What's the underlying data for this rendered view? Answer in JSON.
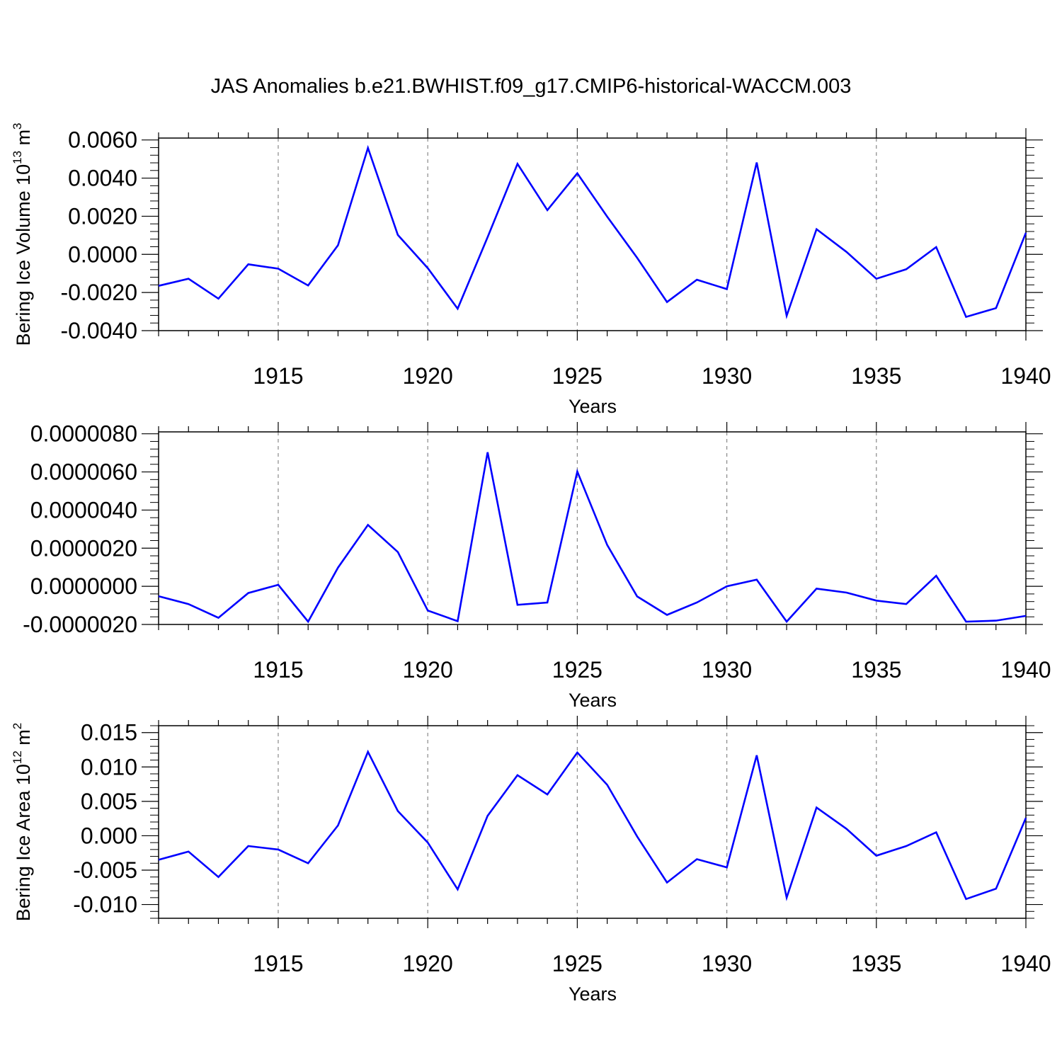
{
  "chart_data": [
    {
      "type": "line",
      "title": "JAS Anomalies b.e21.BWHIST.f09_g17.CMIP6-historical-WACCM.003",
      "ylabel": "Bering Ice Volume 10",
      "ylabel_sup": "13",
      "ylabel_unit": "m",
      "ylabel_unit_sup": "3",
      "xlabel": "Years",
      "xlim": [
        1911,
        1940
      ],
      "ylim": [
        -0.004,
        0.0061
      ],
      "x_ticks": [
        1915,
        1920,
        1925,
        1930,
        1935,
        1940
      ],
      "x_tick_labels": [
        "1915",
        "1920",
        "1925",
        "1930",
        "1935",
        "1940"
      ],
      "y_ticks": [
        -0.004,
        -0.002,
        0.0,
        0.002,
        0.004,
        0.006
      ],
      "y_tick_labels": [
        "-0.0040",
        "-0.0020",
        "0.0000",
        "0.0020",
        "0.0040",
        "0.0060"
      ],
      "line_color": "#0000ff",
      "x": [
        1911,
        1912,
        1913,
        1914,
        1915,
        1916,
        1917,
        1918,
        1919,
        1920,
        1921,
        1922,
        1923,
        1924,
        1925,
        1926,
        1927,
        1928,
        1929,
        1930,
        1931,
        1932,
        1933,
        1934,
        1935,
        1936,
        1937,
        1938,
        1939,
        1940
      ],
      "values": [
        -0.00165,
        -0.00128,
        -0.00232,
        -0.00052,
        -0.00075,
        -0.00163,
        0.00048,
        0.00558,
        0.00102,
        -0.00072,
        -0.00285,
        0.0009,
        0.00475,
        0.00232,
        0.00425,
        0.00198,
        -0.00018,
        -0.0025,
        -0.00133,
        -0.00182,
        0.00482,
        -0.00322,
        0.00132,
        0.00013,
        -0.00128,
        -0.00078,
        0.00038,
        -0.00328,
        -0.00282,
        0.00113
      ]
    },
    {
      "type": "line",
      "title": "",
      "ylabel": "",
      "xlabel": "Years",
      "xlim": [
        1911,
        1940
      ],
      "ylim": [
        -2e-06,
        8.1e-06
      ],
      "x_ticks": [
        1915,
        1920,
        1925,
        1930,
        1935,
        1940
      ],
      "x_tick_labels": [
        "1915",
        "1920",
        "1925",
        "1930",
        "1935",
        "1940"
      ],
      "y_ticks": [
        -2e-06,
        0.0,
        2e-06,
        4e-06,
        6e-06,
        8e-06
      ],
      "y_tick_labels": [
        "-0.0000020",
        "0.0000000",
        "0.0000020",
        "0.0000040",
        "0.0000060",
        "0.0000080"
      ],
      "line_color": "#0000ff",
      "x": [
        1911,
        1912,
        1913,
        1914,
        1915,
        1916,
        1917,
        1918,
        1919,
        1920,
        1921,
        1922,
        1923,
        1924,
        1925,
        1926,
        1927,
        1928,
        1929,
        1930,
        1931,
        1932,
        1933,
        1934,
        1935,
        1936,
        1937,
        1938,
        1939,
        1940
      ],
      "values": [
        -5.2e-07,
        -9.3e-07,
        -1.65e-06,
        -3.5e-07,
        8e-08,
        -1.85e-06,
        9.8e-07,
        3.22e-06,
        1.8e-06,
        -1.27e-06,
        -1.83e-06,
        7.03e-06,
        -9.7e-07,
        -8.5e-07,
        6.02e-06,
        2.17e-06,
        -5.3e-07,
        -1.5e-06,
        -8.5e-07,
        0.0,
        3.5e-07,
        -1.85e-06,
        -1.2e-07,
        -3.3e-07,
        -7.5e-07,
        -9.3e-07,
        5.5e-07,
        -1.85e-06,
        -1.8e-06,
        -1.55e-06
      ]
    },
    {
      "type": "line",
      "title": "",
      "ylabel": "Bering Ice Area 10",
      "ylabel_sup": "12",
      "ylabel_unit": "m",
      "ylabel_unit_sup": "2",
      "xlabel": "Years",
      "xlim": [
        1911,
        1940
      ],
      "ylim": [
        -0.012,
        0.016
      ],
      "x_ticks": [
        1915,
        1920,
        1925,
        1930,
        1935,
        1940
      ],
      "x_tick_labels": [
        "1915",
        "1920",
        "1925",
        "1930",
        "1935",
        "1940"
      ],
      "y_ticks": [
        -0.01,
        -0.005,
        0.0,
        0.005,
        0.01,
        0.015
      ],
      "y_tick_labels": [
        "-0.010",
        "-0.005",
        "0.000",
        "0.005",
        "0.010",
        "0.015"
      ],
      "line_color": "#0000ff",
      "x": [
        1911,
        1912,
        1913,
        1914,
        1915,
        1916,
        1917,
        1918,
        1919,
        1920,
        1921,
        1922,
        1923,
        1924,
        1925,
        1926,
        1927,
        1928,
        1929,
        1930,
        1931,
        1932,
        1933,
        1934,
        1935,
        1936,
        1937,
        1938,
        1939,
        1940
      ],
      "values": [
        -0.0035,
        -0.0023,
        -0.006,
        -0.0015,
        -0.002,
        -0.004,
        0.0015,
        0.0122,
        0.0036,
        -0.001,
        -0.0078,
        0.0029,
        0.0088,
        0.006,
        0.0121,
        0.0074,
        -0.0001,
        -0.0068,
        -0.0034,
        -0.0046,
        0.0117,
        -0.009,
        0.0041,
        0.001,
        -0.0029,
        -0.0015,
        0.0005,
        -0.0092,
        -0.0077,
        0.0026
      ]
    }
  ]
}
